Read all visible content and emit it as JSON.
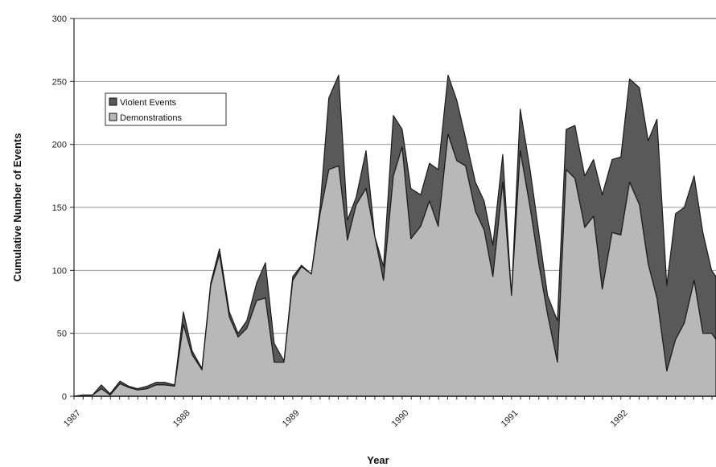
{
  "chart_data": {
    "type": "area",
    "stacked": true,
    "title": "",
    "xlabel": "Year",
    "ylabel": "Cumulative Number of Events",
    "ylim": [
      0,
      300
    ],
    "yticks": [
      0,
      50,
      100,
      150,
      200,
      250,
      300
    ],
    "xlim": [
      1987,
      1992.87
    ],
    "xticks": [
      "1987",
      "1988",
      "1989",
      "1990",
      "1991",
      "1992"
    ],
    "grid": true,
    "legend_position": "top-left",
    "colors": {
      "Violent Events": "#595959",
      "Demonstrations": "#b8b8b8"
    },
    "series": [
      {
        "name": "Demonstrations",
        "x": [
          1987.0,
          1987.08,
          1987.17,
          1987.25,
          1987.33,
          1987.42,
          1987.5,
          1987.58,
          1987.67,
          1987.75,
          1987.83,
          1987.92,
          1988.0,
          1988.08,
          1988.17,
          1988.25,
          1988.33,
          1988.42,
          1988.5,
          1988.58,
          1988.67,
          1988.75,
          1988.83,
          1988.92,
          1989.0,
          1989.08,
          1989.17,
          1989.25,
          1989.33,
          1989.42,
          1989.5,
          1989.58,
          1989.67,
          1989.75,
          1989.83,
          1989.92,
          1990.0,
          1990.08,
          1990.17,
          1990.25,
          1990.33,
          1990.42,
          1990.5,
          1990.58,
          1990.67,
          1990.75,
          1990.83,
          1990.92,
          1991.0,
          1991.08,
          1991.17,
          1991.25,
          1991.33,
          1991.42,
          1991.5,
          1991.58,
          1991.67,
          1991.75,
          1991.83,
          1991.92,
          1992.0,
          1992.08,
          1992.17,
          1992.25,
          1992.33,
          1992.42,
          1992.5,
          1992.58,
          1992.67,
          1992.75,
          1992.83,
          1992.87
        ],
        "values": [
          0,
          1,
          1,
          6,
          1,
          10,
          7,
          5,
          6,
          9,
          9,
          8,
          57,
          33,
          21,
          88,
          113,
          63,
          47,
          54,
          76,
          78,
          27,
          27,
          92,
          103,
          97,
          145,
          180,
          183,
          124,
          152,
          165,
          127,
          92,
          175,
          198,
          125,
          135,
          155,
          135,
          208,
          187,
          183,
          147,
          132,
          95,
          170,
          80,
          195,
          150,
          105,
          65,
          27,
          180,
          173,
          134,
          143,
          85,
          130,
          128,
          170,
          152,
          105,
          78,
          20,
          45,
          58,
          92,
          50,
          50,
          45
        ],
        "violent_events_cumulative": [
          0,
          1,
          1,
          9,
          2,
          12,
          8,
          6,
          8,
          11,
          11,
          9,
          67,
          36,
          22,
          90,
          117,
          67,
          50,
          60,
          90,
          106,
          42,
          28,
          95,
          104,
          97,
          150,
          237,
          255,
          140,
          158,
          195,
          127,
          103,
          223,
          212,
          165,
          160,
          185,
          180,
          255,
          235,
          205,
          170,
          155,
          120,
          192,
          80,
          228,
          180,
          130,
          80,
          60,
          212,
          215,
          175,
          188,
          160,
          188,
          190,
          252,
          245,
          203,
          220,
          88,
          145,
          150,
          175,
          130,
          100,
          95
        ]
      },
      {
        "name": "Violent Events"
      }
    ]
  }
}
